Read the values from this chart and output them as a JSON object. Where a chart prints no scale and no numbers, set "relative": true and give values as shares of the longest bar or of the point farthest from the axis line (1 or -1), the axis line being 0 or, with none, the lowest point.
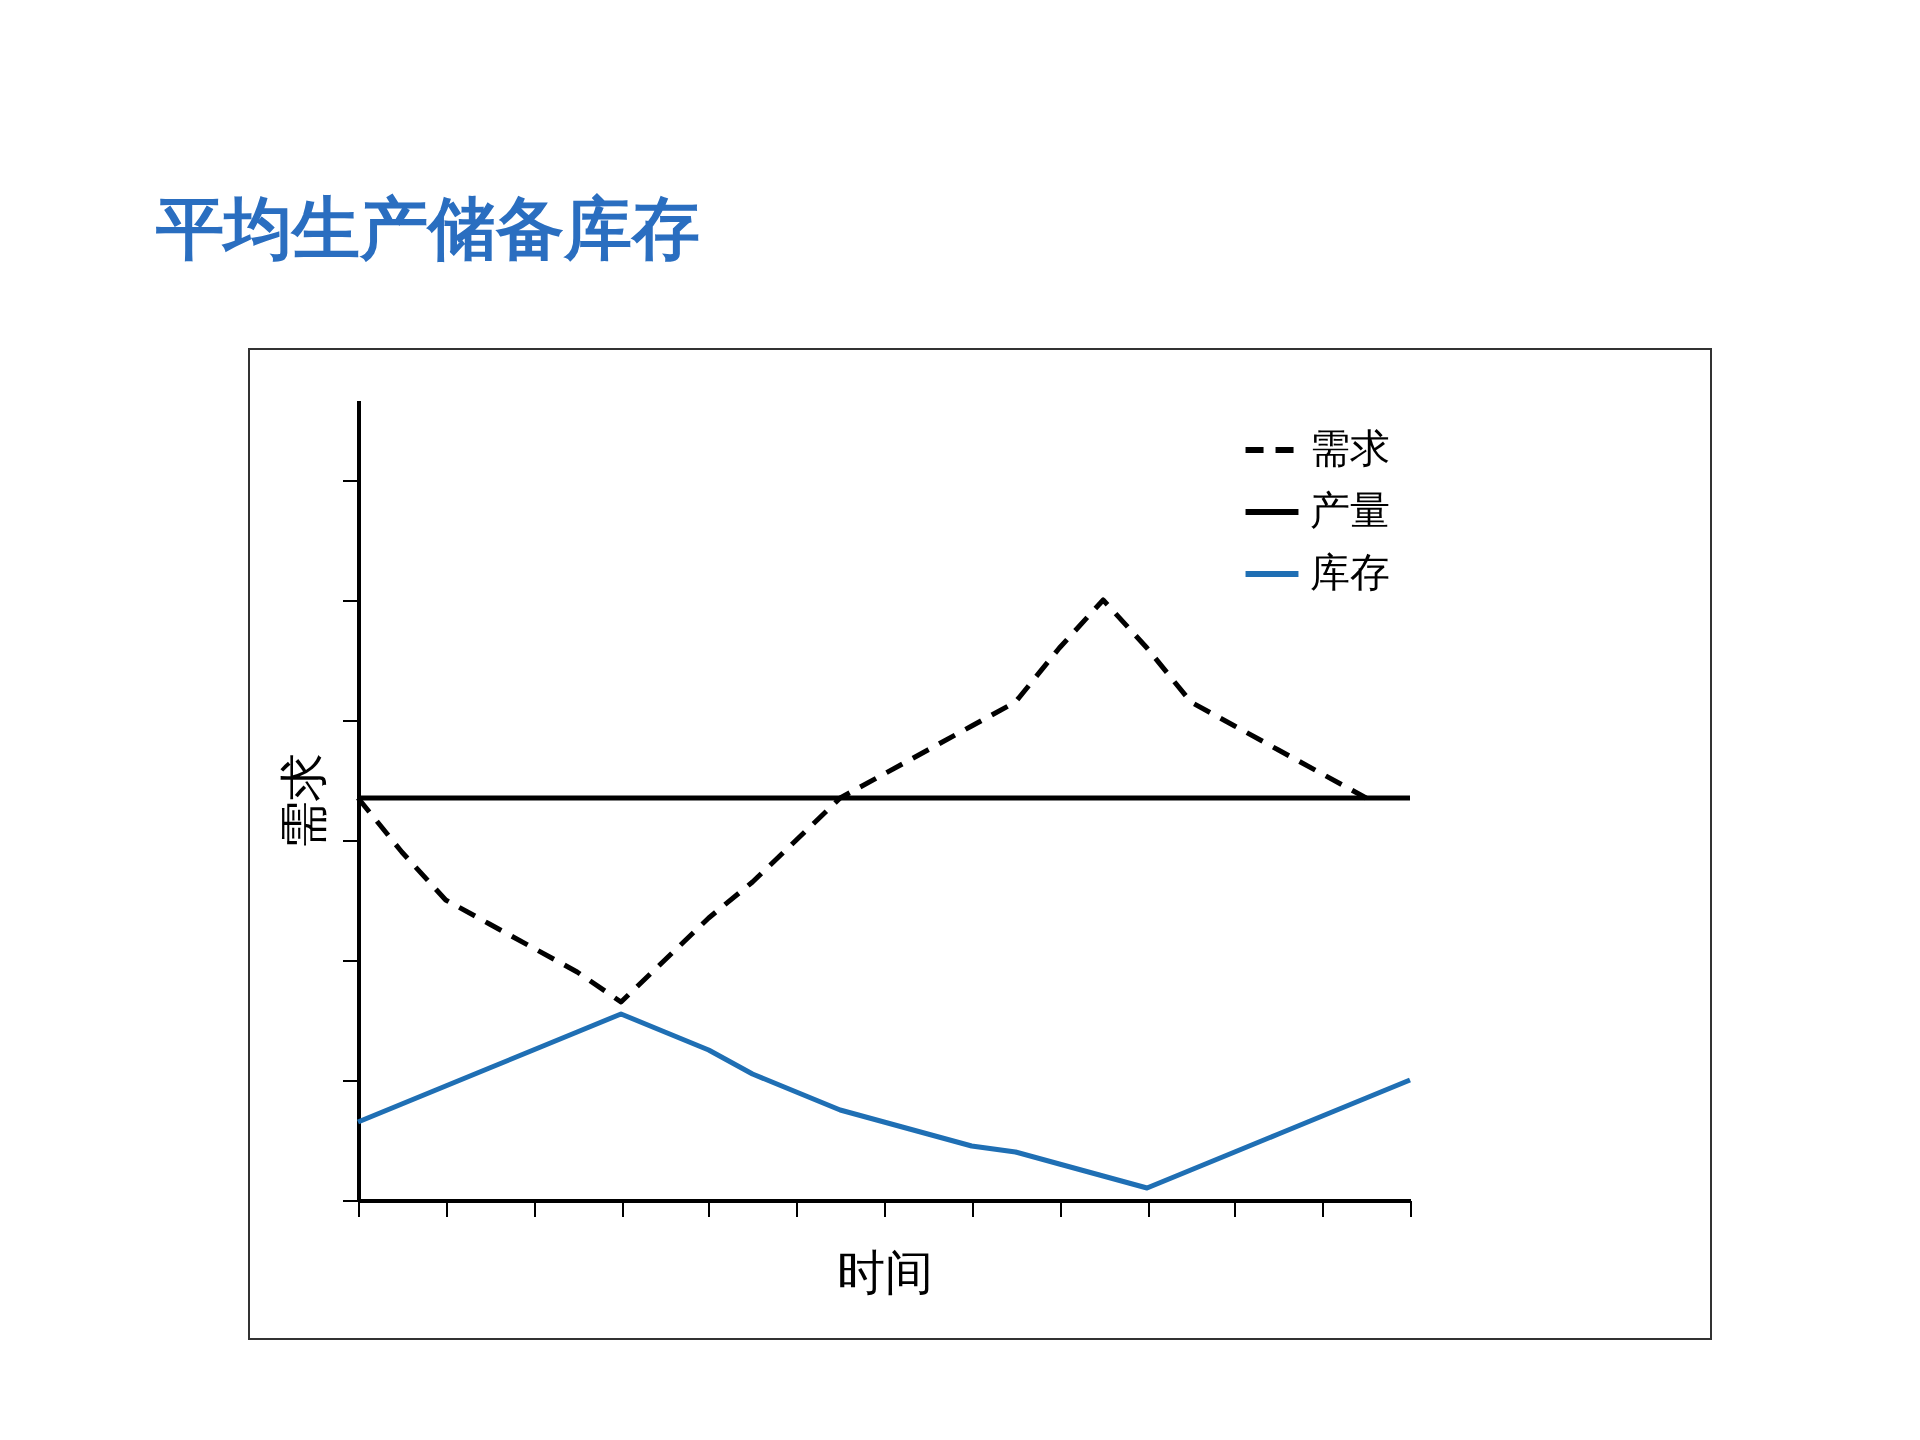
{
  "chart_data": {
    "type": "line",
    "title": "平均生产储备库存",
    "xlabel": "时间",
    "ylabel": "需求",
    "relative": true,
    "legend": "top right",
    "categories": [
      null,
      null,
      null,
      null,
      null,
      null,
      null,
      null,
      null,
      null,
      null,
      null,
      null,
      null,
      null,
      null,
      null,
      null,
      null,
      null,
      null,
      null,
      null,
      null,
      null
    ],
    "series": [
      {
        "name": "需求",
        "color": "#000000",
        "line_style": "dashed",
        "values": [
          0.67,
          0.58,
          0.5,
          0.46,
          0.42,
          0.38,
          0.33,
          0.4,
          0.47,
          0.53,
          0.6,
          0.67,
          0.71,
          0.75,
          0.79,
          0.83,
          0.92,
          1,
          0.92,
          0.83,
          0.79,
          0.75,
          0.71,
          0.67,
          null
        ]
      },
      {
        "name": "产量",
        "color": "#000000",
        "line_style": "solid",
        "values": [
          0.67,
          0.67,
          0.67,
          0.67,
          0.67,
          0.67,
          0.67,
          0.67,
          0.67,
          0.67,
          0.67,
          0.67,
          0.67,
          0.67,
          0.67,
          0.67,
          0.67,
          0.67,
          0.67,
          0.67,
          0.67,
          0.67,
          0.67,
          0.67,
          0.67
        ]
      },
      {
        "name": "库存",
        "color": "#1f6fb4",
        "line_style": "solid",
        "values": [
          0.13,
          0.16,
          0.19,
          0.22,
          0.25,
          0.28,
          0.31,
          0.28,
          0.25,
          0.21,
          0.18,
          0.15,
          0.13,
          0.11,
          0.09,
          0.08,
          0.06,
          0.04,
          0.02,
          0.05,
          0.08,
          0.11,
          0.14,
          0.17,
          0.2
        ]
      }
    ]
  }
}
